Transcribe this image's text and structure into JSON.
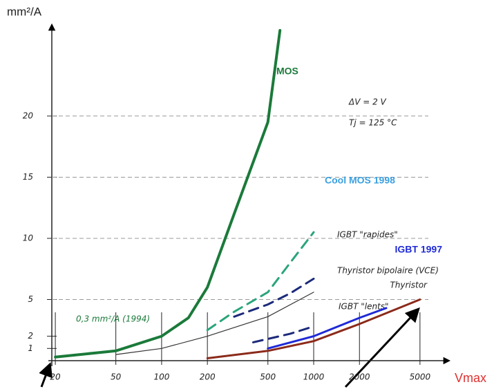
{
  "chart_data": {
    "type": "line",
    "y_label": "mm²/A",
    "x_label": "Vmax",
    "annotations": [
      "ΔV = 2 V",
      "Tj = 125 °C",
      "0,3 mm²/A (1994)"
    ],
    "x_log": true,
    "grid": true,
    "xlim": [
      18,
      7000
    ],
    "xticks": [
      20,
      50,
      100,
      200,
      500,
      1000,
      2000,
      5000
    ],
    "ylim": [
      0,
      27
    ],
    "yticks": [
      1,
      2,
      5,
      10,
      15,
      20
    ],
    "series": [
      {
        "name": "MOS",
        "color": "#1b7a3a",
        "label_color": "#1b7a3a",
        "dash": false,
        "x": [
          20,
          50,
          100,
          150,
          200,
          300,
          500,
          600
        ],
        "values": [
          0.3,
          0.8,
          2,
          3.5,
          6,
          12,
          19.5,
          27
        ]
      },
      {
        "name": "Cool MOS 1998",
        "color": "#2aa57a",
        "label_color": "#3aa0e0",
        "dash": true,
        "x": [
          200,
          300,
          500,
          700,
          1000
        ],
        "values": [
          2.5,
          4,
          5.6,
          8,
          10.5
        ]
      },
      {
        "name": "IGBT \"rapides\"",
        "color": "#1c2a7a",
        "label_color": "#222",
        "dash": true,
        "x": [
          300,
          500,
          700,
          1000
        ],
        "values": [
          3.6,
          4.6,
          5.5,
          6.7
        ]
      },
      {
        "name": "Thyristor bipolaire (VCE)",
        "color": "#333",
        "label_color": "#222",
        "dash": false,
        "x": [
          50,
          100,
          200,
          500,
          1000
        ],
        "values": [
          0.5,
          1,
          2,
          3.6,
          5.6
        ]
      },
      {
        "name": "IGBT \"lents\"",
        "color": "#1c2a7a",
        "label_color": "#222",
        "dash": true,
        "x": [
          400,
          700,
          1000
        ],
        "values": [
          1.5,
          2.2,
          2.8
        ]
      },
      {
        "name": "IGBT 1997",
        "color": "#1f2ad6",
        "label_color": "#1f2ad6",
        "dash": false,
        "x": [
          500,
          1000,
          2000,
          3000
        ],
        "values": [
          1,
          2,
          3.5,
          4.3
        ]
      },
      {
        "name": "Thyristor",
        "color": "#8b2a1a",
        "label_color": "#222",
        "dash": false,
        "x": [
          200,
          500,
          1000,
          2000,
          5000
        ],
        "values": [
          0.2,
          0.8,
          1.6,
          3,
          5
        ]
      }
    ]
  }
}
